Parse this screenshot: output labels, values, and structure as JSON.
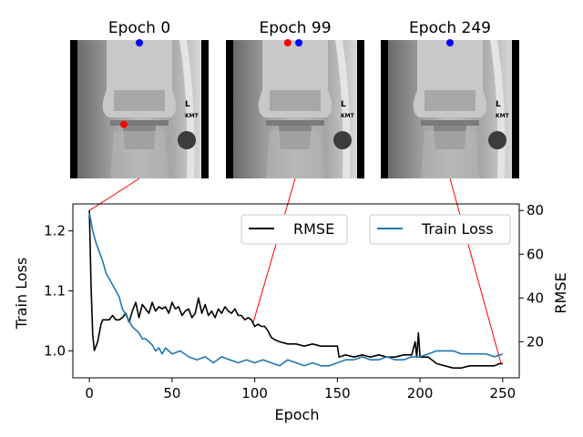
{
  "panels": [
    {
      "title": "Epoch 0",
      "red_point": [
        0.375,
        0.59
      ],
      "blue_point": [
        0.5,
        0.0
      ]
    },
    {
      "title": "Epoch 99",
      "red_point": [
        0.44,
        0.0
      ],
      "blue_point": [
        0.53,
        0.0
      ]
    },
    {
      "title": "Epoch 249",
      "red_point": null,
      "blue_point": [
        0.5,
        0.0
      ]
    }
  ],
  "image_marker_text": "KMT",
  "chart_data": {
    "type": "line",
    "xlabel": "Epoch",
    "ylabel_left": "Train Loss",
    "ylabel_right": "RMSE",
    "xlim": [
      -10,
      260
    ],
    "ylim_left": [
      0.955,
      1.245
    ],
    "ylim_right": [
      3.5,
      83
    ],
    "xticks": [
      0,
      50,
      100,
      150,
      200,
      250
    ],
    "yticks_left": [
      1.0,
      1.1,
      1.2
    ],
    "yticks_right": [
      20,
      40,
      60,
      80
    ],
    "legend": [
      "RMSE",
      "Train Loss"
    ],
    "legend_placement": "top-right",
    "series": [
      {
        "name": "RMSE",
        "axis": "right",
        "color": "#000000",
        "x": [
          0,
          1,
          2,
          3,
          5,
          7,
          8,
          10,
          12,
          14,
          16,
          18,
          20,
          22,
          24,
          26,
          28,
          30,
          32,
          34,
          36,
          38,
          40,
          42,
          44,
          46,
          48,
          50,
          52,
          54,
          56,
          58,
          60,
          62,
          64,
          66,
          68,
          70,
          72,
          74,
          76,
          78,
          80,
          82,
          84,
          86,
          88,
          90,
          92,
          94,
          96,
          98,
          100,
          102,
          104,
          106,
          108,
          110,
          112,
          115,
          120,
          125,
          130,
          135,
          140,
          145,
          149,
          150,
          151,
          155,
          160,
          165,
          170,
          175,
          180,
          185,
          190,
          195,
          197,
          198,
          199,
          200,
          202,
          205,
          210,
          215,
          220,
          225,
          230,
          235,
          240,
          245,
          248,
          250
        ],
        "y": [
          80,
          45,
          23,
          16,
          20,
          28,
          30,
          30,
          30,
          32,
          30,
          30,
          31,
          33,
          29,
          34,
          38,
          31,
          37,
          35,
          33,
          38,
          34,
          36,
          35,
          36,
          33,
          38,
          35,
          36,
          32,
          34,
          35,
          31,
          33,
          40,
          33,
          37,
          32,
          34,
          31,
          35,
          33,
          36,
          34,
          33,
          35,
          32,
          32,
          30,
          31,
          30,
          27,
          28,
          27,
          27,
          25,
          22,
          21,
          20,
          19,
          19,
          18,
          19,
          18,
          18,
          18,
          18,
          13,
          14,
          13,
          14,
          13,
          14,
          13,
          13,
          14,
          14,
          20,
          13,
          24,
          13,
          13,
          13,
          10,
          9,
          8,
          8,
          9,
          9,
          9,
          9,
          10,
          10
        ]
      },
      {
        "name": "Train Loss",
        "axis": "left",
        "color": "#1f77b4",
        "x": [
          0,
          2,
          4,
          6,
          8,
          10,
          12,
          14,
          16,
          18,
          20,
          22,
          24,
          26,
          28,
          30,
          32,
          34,
          36,
          38,
          40,
          42,
          44,
          46,
          48,
          50,
          55,
          60,
          65,
          70,
          75,
          80,
          85,
          90,
          95,
          100,
          105,
          110,
          115,
          120,
          125,
          130,
          135,
          140,
          145,
          150,
          155,
          160,
          165,
          170,
          175,
          180,
          185,
          190,
          195,
          200,
          205,
          210,
          215,
          220,
          225,
          230,
          235,
          240,
          245,
          250
        ],
        "y": [
          1.23,
          1.2,
          1.18,
          1.165,
          1.15,
          1.13,
          1.12,
          1.11,
          1.1,
          1.09,
          1.07,
          1.06,
          1.05,
          1.04,
          1.035,
          1.03,
          1.02,
          1.02,
          1.015,
          1.01,
          1.0,
          1.005,
          0.995,
          1.005,
          1.0,
          0.995,
          1.0,
          0.99,
          0.985,
          0.99,
          0.98,
          0.99,
          0.985,
          0.98,
          0.985,
          0.98,
          0.985,
          0.98,
          0.975,
          0.985,
          0.98,
          0.975,
          0.98,
          0.975,
          0.975,
          0.98,
          0.985,
          0.985,
          0.99,
          0.985,
          0.985,
          0.99,
          0.985,
          0.985,
          0.99,
          0.99,
          0.995,
          1.0,
          1.0,
          1.0,
          0.995,
          0.995,
          0.995,
          0.995,
          0.99,
          0.995
        ]
      }
    ],
    "connectors": [
      {
        "panel": 0,
        "epoch": 0
      },
      {
        "panel": 1,
        "epoch": 99
      },
      {
        "panel": 2,
        "epoch": 249
      }
    ]
  }
}
